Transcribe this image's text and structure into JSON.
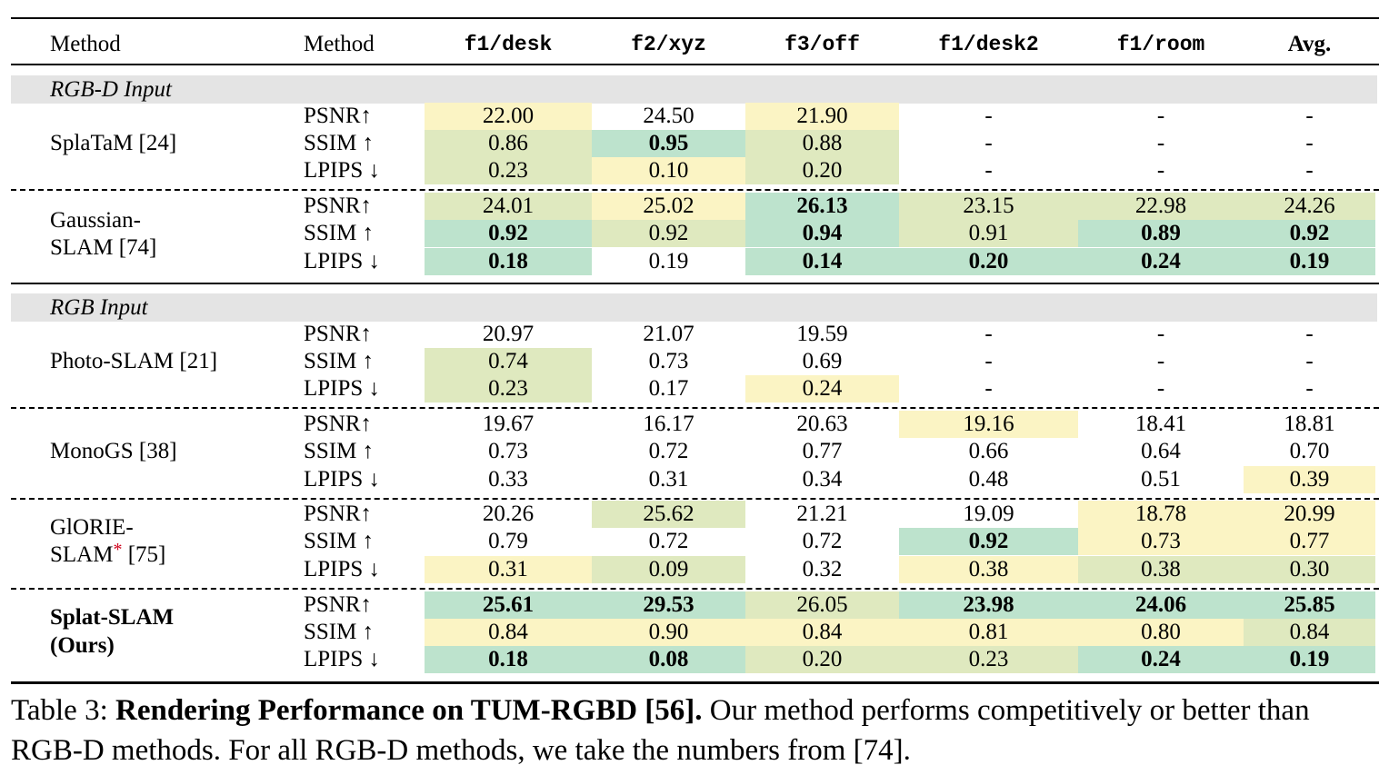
{
  "table": {
    "headers": {
      "method_group": "Method",
      "metric": "Method",
      "scenes": [
        "f1/desk",
        "f2/xyz",
        "f3/off",
        "f1/desk2",
        "f1/room"
      ],
      "avg": "Avg."
    },
    "metric_labels": [
      "PSNR↑",
      "SSIM ↑",
      "LPIPS ↓"
    ],
    "sections": [
      {
        "title": "RGB-D Input",
        "methods": [
          {
            "name_lines": [
              "SplaTaM [24]"
            ],
            "bold_name": false,
            "rows": [
              [
                {
                  "v": "22.00",
                  "c": "y"
                },
                {
                  "v": "24.50",
                  "c": ""
                },
                {
                  "v": "21.90",
                  "c": "y"
                },
                {
                  "v": "-",
                  "c": ""
                },
                {
                  "v": "-",
                  "c": ""
                },
                {
                  "v": "-",
                  "c": ""
                }
              ],
              [
                {
                  "v": "0.86",
                  "c": "l"
                },
                {
                  "v": "0.95",
                  "c": "g",
                  "b": true
                },
                {
                  "v": "0.88",
                  "c": "l"
                },
                {
                  "v": "-",
                  "c": ""
                },
                {
                  "v": "-",
                  "c": ""
                },
                {
                  "v": "-",
                  "c": ""
                }
              ],
              [
                {
                  "v": "0.23",
                  "c": "l"
                },
                {
                  "v": "0.10",
                  "c": "y"
                },
                {
                  "v": "0.20",
                  "c": "l"
                },
                {
                  "v": "-",
                  "c": ""
                },
                {
                  "v": "-",
                  "c": ""
                },
                {
                  "v": "-",
                  "c": ""
                }
              ]
            ]
          },
          {
            "name_lines": [
              "Gaussian-",
              "SLAM [74]"
            ],
            "bold_name": false,
            "rows": [
              [
                {
                  "v": "24.01",
                  "c": "l"
                },
                {
                  "v": "25.02",
                  "c": "y"
                },
                {
                  "v": "26.13",
                  "c": "g",
                  "b": true
                },
                {
                  "v": "23.15",
                  "c": "l"
                },
                {
                  "v": "22.98",
                  "c": "l"
                },
                {
                  "v": "24.26",
                  "c": "l"
                }
              ],
              [
                {
                  "v": "0.92",
                  "c": "g",
                  "b": true
                },
                {
                  "v": "0.92",
                  "c": "l"
                },
                {
                  "v": "0.94",
                  "c": "g",
                  "b": true
                },
                {
                  "v": "0.91",
                  "c": "l"
                },
                {
                  "v": "0.89",
                  "c": "g",
                  "b": true
                },
                {
                  "v": "0.92",
                  "c": "g",
                  "b": true
                }
              ],
              [
                {
                  "v": "0.18",
                  "c": "g",
                  "b": true
                },
                {
                  "v": "0.19",
                  "c": ""
                },
                {
                  "v": "0.14",
                  "c": "g",
                  "b": true
                },
                {
                  "v": "0.20",
                  "c": "g",
                  "b": true
                },
                {
                  "v": "0.24",
                  "c": "g",
                  "b": true
                },
                {
                  "v": "0.19",
                  "c": "g",
                  "b": true
                }
              ]
            ]
          }
        ]
      },
      {
        "title": "RGB Input",
        "methods": [
          {
            "name_lines": [
              "Photo-SLAM [21]"
            ],
            "bold_name": false,
            "rows": [
              [
                {
                  "v": "20.97",
                  "c": ""
                },
                {
                  "v": "21.07",
                  "c": ""
                },
                {
                  "v": "19.59",
                  "c": ""
                },
                {
                  "v": "-",
                  "c": ""
                },
                {
                  "v": "-",
                  "c": ""
                },
                {
                  "v": "-",
                  "c": ""
                }
              ],
              [
                {
                  "v": "0.74",
                  "c": "l"
                },
                {
                  "v": "0.73",
                  "c": ""
                },
                {
                  "v": "0.69",
                  "c": ""
                },
                {
                  "v": "-",
                  "c": ""
                },
                {
                  "v": "-",
                  "c": ""
                },
                {
                  "v": "-",
                  "c": ""
                }
              ],
              [
                {
                  "v": "0.23",
                  "c": "l"
                },
                {
                  "v": "0.17",
                  "c": ""
                },
                {
                  "v": "0.24",
                  "c": "y"
                },
                {
                  "v": "-",
                  "c": ""
                },
                {
                  "v": "-",
                  "c": ""
                },
                {
                  "v": "-",
                  "c": ""
                }
              ]
            ]
          },
          {
            "name_lines": [
              "MonoGS [38]"
            ],
            "bold_name": false,
            "rows": [
              [
                {
                  "v": "19.67",
                  "c": ""
                },
                {
                  "v": "16.17",
                  "c": ""
                },
                {
                  "v": "20.63",
                  "c": ""
                },
                {
                  "v": "19.16",
                  "c": "y"
                },
                {
                  "v": "18.41",
                  "c": ""
                },
                {
                  "v": "18.81",
                  "c": ""
                }
              ],
              [
                {
                  "v": "0.73",
                  "c": ""
                },
                {
                  "v": "0.72",
                  "c": ""
                },
                {
                  "v": "0.77",
                  "c": ""
                },
                {
                  "v": "0.66",
                  "c": ""
                },
                {
                  "v": "0.64",
                  "c": ""
                },
                {
                  "v": "0.70",
                  "c": ""
                }
              ],
              [
                {
                  "v": "0.33",
                  "c": ""
                },
                {
                  "v": "0.31",
                  "c": ""
                },
                {
                  "v": "0.34",
                  "c": ""
                },
                {
                  "v": "0.48",
                  "c": ""
                },
                {
                  "v": "0.51",
                  "c": ""
                },
                {
                  "v": "0.39",
                  "c": "y"
                }
              ]
            ]
          },
          {
            "name_lines": [
              "GlORIE-",
              "SLAM"
            ],
            "name_star": "*",
            "name_suffix": " [75]",
            "bold_name": false,
            "rows": [
              [
                {
                  "v": "20.26",
                  "c": ""
                },
                {
                  "v": "25.62",
                  "c": "l"
                },
                {
                  "v": "21.21",
                  "c": ""
                },
                {
                  "v": "19.09",
                  "c": ""
                },
                {
                  "v": "18.78",
                  "c": "y"
                },
                {
                  "v": "20.99",
                  "c": "y"
                }
              ],
              [
                {
                  "v": "0.79",
                  "c": ""
                },
                {
                  "v": "0.72",
                  "c": ""
                },
                {
                  "v": "0.72",
                  "c": ""
                },
                {
                  "v": "0.92",
                  "c": "g",
                  "b": true
                },
                {
                  "v": "0.73",
                  "c": "y"
                },
                {
                  "v": "0.77",
                  "c": "y"
                }
              ],
              [
                {
                  "v": "0.31",
                  "c": "y"
                },
                {
                  "v": "0.09",
                  "c": "l"
                },
                {
                  "v": "0.32",
                  "c": ""
                },
                {
                  "v": "0.38",
                  "c": "y"
                },
                {
                  "v": "0.38",
                  "c": "l"
                },
                {
                  "v": "0.30",
                  "c": "l"
                }
              ]
            ]
          },
          {
            "name_lines": [
              "Splat-SLAM",
              "(Ours)"
            ],
            "bold_name": true,
            "rows": [
              [
                {
                  "v": "25.61",
                  "c": "g",
                  "b": true
                },
                {
                  "v": "29.53",
                  "c": "g",
                  "b": true
                },
                {
                  "v": "26.05",
                  "c": "l"
                },
                {
                  "v": "23.98",
                  "c": "g",
                  "b": true
                },
                {
                  "v": "24.06",
                  "c": "g",
                  "b": true
                },
                {
                  "v": "25.85",
                  "c": "g",
                  "b": true
                }
              ],
              [
                {
                  "v": "0.84",
                  "c": "y"
                },
                {
                  "v": "0.90",
                  "c": "y"
                },
                {
                  "v": "0.84",
                  "c": "y"
                },
                {
                  "v": "0.81",
                  "c": "y"
                },
                {
                  "v": "0.80",
                  "c": "y"
                },
                {
                  "v": "0.84",
                  "c": "l"
                }
              ],
              [
                {
                  "v": "0.18",
                  "c": "g",
                  "b": true
                },
                {
                  "v": "0.08",
                  "c": "g",
                  "b": true
                },
                {
                  "v": "0.20",
                  "c": "l"
                },
                {
                  "v": "0.23",
                  "c": "l"
                },
                {
                  "v": "0.24",
                  "c": "g",
                  "b": true
                },
                {
                  "v": "0.19",
                  "c": "g",
                  "b": true
                }
              ]
            ]
          }
        ]
      }
    ]
  },
  "colors": {
    "g": "#bde3cd",
    "l": "#dfe9bf",
    "y": "#fbf4c4",
    "section_bg": "#e4e4e4"
  },
  "caption": {
    "prefix": "Table 3: ",
    "bold": "Rendering Performance on TUM-RGBD [56].",
    "rest": " Our method performs competitively or better than RGB-D methods. For all RGB-D methods, we take the numbers from [74]."
  }
}
